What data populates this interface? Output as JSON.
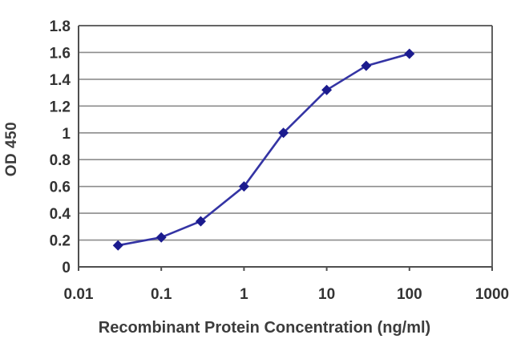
{
  "chart_data": {
    "type": "line",
    "title": "",
    "xlabel": "Recombinant Protein Concentration (ng/ml)",
    "ylabel": "OD 450",
    "x_scale": "log",
    "xlim": [
      0.01,
      1000
    ],
    "ylim": [
      0,
      1.8
    ],
    "grid": true,
    "legend": "none",
    "x": [
      0.03,
      0.1,
      0.3,
      1,
      3,
      10,
      30,
      100
    ],
    "y": [
      0.16,
      0.22,
      0.34,
      0.6,
      1.0,
      1.32,
      1.5,
      1.59
    ],
    "x_ticks": [
      0.01,
      0.1,
      1,
      10,
      100,
      1000
    ],
    "x_tick_labels": [
      "0.01",
      "0.1",
      "1",
      "10",
      "100",
      "1000"
    ],
    "y_ticks": [
      0,
      0.2,
      0.4,
      0.6,
      0.8,
      1,
      1.2,
      1.4,
      1.6,
      1.8
    ],
    "y_tick_labels": [
      "0",
      "0.2",
      "0.4",
      "0.6",
      "0.8",
      "1",
      "1.2",
      "1.4",
      "1.6",
      "1.8"
    ],
    "marker": "diamond",
    "colors": {
      "line": "#3434a4",
      "marker": "#1b1b8e",
      "grid": "#8c8c8c",
      "axis": "#4f4f4f",
      "tick_text": "#333333",
      "label_text": "#3c3c3c",
      "plot_bg": "#ffffff"
    }
  }
}
